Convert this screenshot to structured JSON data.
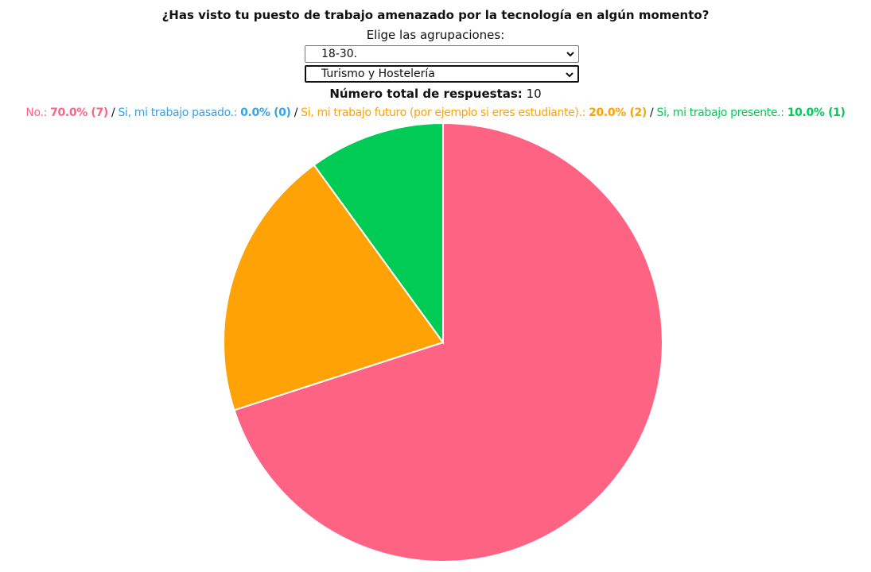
{
  "title": "¿Has visto tu puesto de trabajo amenazado por la tecnología en algún momento?",
  "filters": {
    "label": "Elige las agrupaciones:",
    "age_group": {
      "selected": "18-30."
    },
    "sector": {
      "selected": "Turismo y Hostelería"
    }
  },
  "total": {
    "label": "Número total de respuestas:",
    "value": "10"
  },
  "chart_data": {
    "type": "pie",
    "title": "¿Has visto tu puesto de trabajo amenazado por la tecnología en algún momento?",
    "total": 10,
    "slices": [
      {
        "label": "No.",
        "value": 7,
        "percent": "70.0%",
        "count": "(7)",
        "color": "#ff6384"
      },
      {
        "label": "Si, mi trabajo pasado.",
        "value": 0,
        "percent": "0.0%",
        "count": "(0)",
        "color": "#36a2eb"
      },
      {
        "label": "Si, mi trabajo futuro (por ejemplo si eres estudiante).",
        "value": 2,
        "percent": "20.0%",
        "count": "(2)",
        "color": "#ffa205"
      },
      {
        "label": "Si, mi trabajo presente.",
        "value": 1,
        "percent": "10.0%",
        "count": "(1)",
        "color": "#00cc55"
      }
    ],
    "legend_position": "top"
  }
}
